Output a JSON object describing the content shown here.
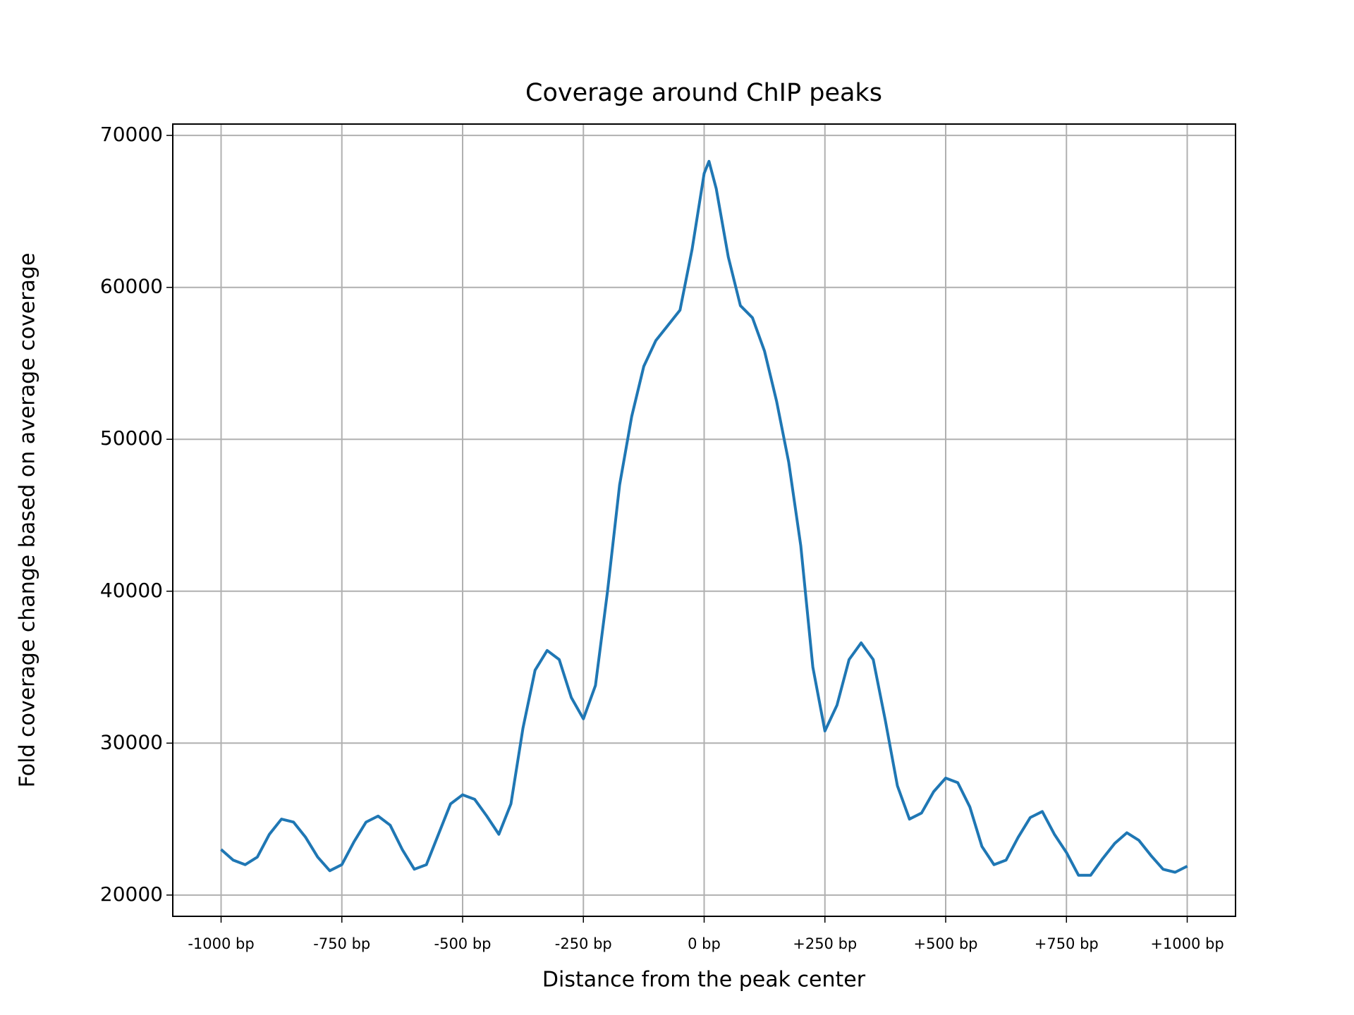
{
  "chart_data": {
    "type": "line",
    "title": "Coverage around ChIP peaks",
    "xlabel": "Distance from the peak center",
    "ylabel": "Fold coverage change  based on average coverage",
    "x": [
      -1000,
      -975,
      -950,
      -925,
      -900,
      -875,
      -850,
      -825,
      -800,
      -775,
      -750,
      -725,
      -700,
      -675,
      -650,
      -625,
      -600,
      -575,
      -550,
      -525,
      -500,
      -475,
      -450,
      -425,
      -400,
      -375,
      -350,
      -325,
      -300,
      -275,
      -250,
      -225,
      -200,
      -175,
      -150,
      -125,
      -100,
      -75,
      -50,
      -25,
      0,
      10,
      25,
      50,
      75,
      100,
      125,
      150,
      175,
      200,
      225,
      250,
      275,
      300,
      325,
      350,
      375,
      400,
      425,
      450,
      475,
      500,
      525,
      550,
      575,
      600,
      625,
      650,
      675,
      700,
      725,
      750,
      775,
      800,
      825,
      850,
      875,
      900,
      925,
      950,
      975,
      1000
    ],
    "series": [
      {
        "name": "coverage",
        "color": "#1f77b4",
        "values": [
          23000,
          22300,
          22000,
          22500,
          24000,
          25000,
          24800,
          23800,
          22500,
          21600,
          22000,
          23500,
          24800,
          25200,
          24600,
          23000,
          21700,
          22000,
          24000,
          26000,
          26600,
          26300,
          25200,
          24000,
          26000,
          31000,
          34800,
          36100,
          35500,
          33000,
          31600,
          33800,
          40000,
          47000,
          51500,
          54800,
          56500,
          57500,
          58500,
          62500,
          67500,
          68300,
          66500,
          62000,
          58800,
          58000,
          55800,
          52500,
          48500,
          43000,
          35000,
          30800,
          32500,
          35500,
          36600,
          35500,
          31500,
          27200,
          25000,
          25400,
          26800,
          27700,
          27400,
          25800,
          23200,
          22000,
          22300,
          23800,
          25100,
          25500,
          24000,
          22800,
          21300,
          21300,
          22400,
          23400,
          24100,
          23600,
          22600,
          21700,
          21500,
          21900
        ]
      }
    ],
    "xlim": [
      -1100,
      1100
    ],
    "ylim": [
      18600,
      70750
    ],
    "xticks": [
      {
        "value": -1000,
        "label": "-1000 bp"
      },
      {
        "value": -750,
        "label": "-750 bp"
      },
      {
        "value": -500,
        "label": "-500 bp"
      },
      {
        "value": -250,
        "label": "-250 bp"
      },
      {
        "value": 0,
        "label": "0 bp"
      },
      {
        "value": 250,
        "label": "+250 bp"
      },
      {
        "value": 500,
        "label": "+500 bp"
      },
      {
        "value": 750,
        "label": "+750 bp"
      },
      {
        "value": 1000,
        "label": "+1000 bp"
      }
    ],
    "yticks": [
      20000,
      30000,
      40000,
      50000,
      60000,
      70000
    ],
    "grid": true
  }
}
